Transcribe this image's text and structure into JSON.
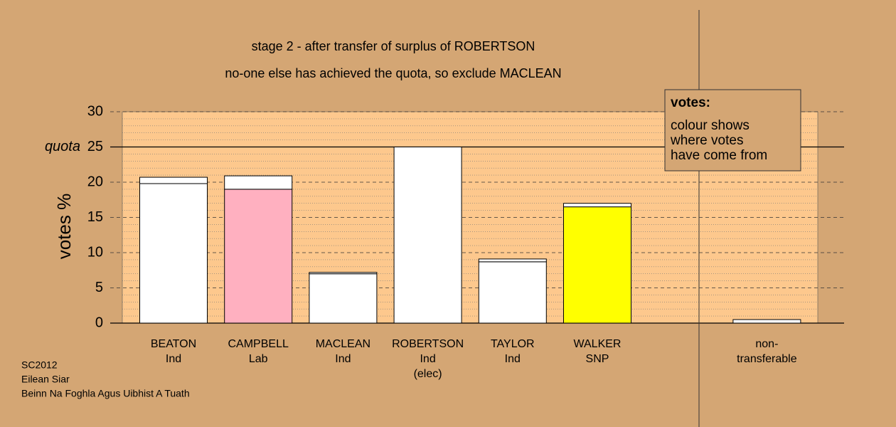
{
  "chart_data": {
    "type": "stacked_bar",
    "title": "stage 2 - after transfer of surplus of ROBERTSON",
    "subtitle": "no-one else has achieved the quota, so exclude MACLEAN",
    "y_label": "votes %",
    "categories": [
      [
        "BEATON",
        "Ind"
      ],
      [
        "CAMPBELL",
        "Lab"
      ],
      [
        "MACLEAN",
        "Ind"
      ],
      [
        "ROBERTSON",
        "Ind",
        "(elec)"
      ],
      [
        "TAYLOR",
        "Ind"
      ],
      [
        "WALKER",
        "SNP"
      ],
      null,
      [
        "non-",
        "transferable"
      ]
    ],
    "series": [
      {
        "colors": [
          "#ffffff",
          "#ffb0c0",
          "#ffffff",
          "#ffffff",
          "#ffffff",
          "#ffff00",
          null,
          "#ffffff"
        ],
        "values": [
          19.8,
          19.0,
          7.0,
          25,
          8.7,
          16.5,
          null,
          0.5
        ]
      },
      {
        "colors": [
          "#ffffff",
          "#ffffff",
          "#ffffff",
          null,
          "#ffffff",
          "#ffffff",
          null,
          null
        ],
        "values": [
          0.9,
          1.9,
          0.2,
          null,
          0.4,
          0.5,
          null,
          null
        ]
      }
    ],
    "quota": {
      "value": 25,
      "label": "quota"
    },
    "ylim": [
      0,
      30
    ],
    "yticks": [
      0,
      5,
      10,
      15,
      20,
      25,
      30
    ],
    "grid": true,
    "legend": {
      "title": "votes:",
      "lines": [
        "colour shows",
        "where votes",
        "have come from"
      ]
    },
    "footer": [
      "SC2012",
      "Eilean Siar",
      "Beinn Na Foghla Agus Uibhist A Tuath"
    ]
  }
}
